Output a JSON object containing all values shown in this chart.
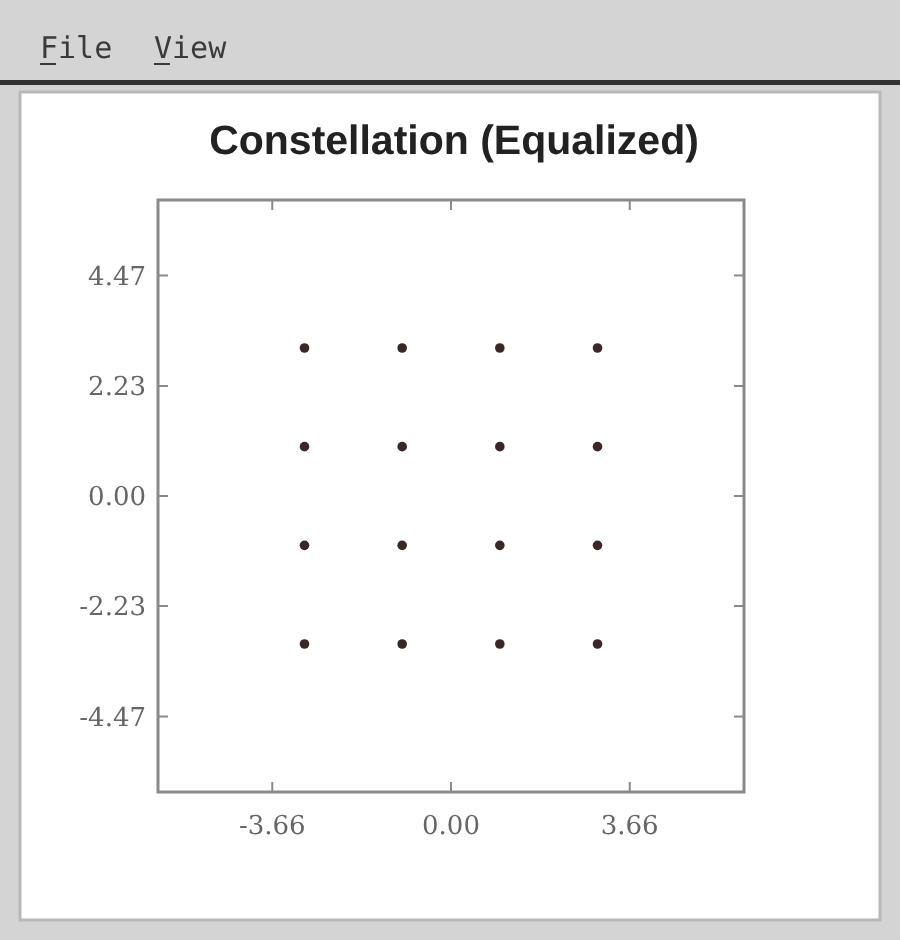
{
  "chart_data": {
    "type": "scatter",
    "title": "Constellation (Equalized)",
    "annotations": [
      "File",
      "View"
    ],
    "x": [
      -3,
      -1,
      1,
      3,
      -3,
      -1,
      1,
      3,
      -3,
      -1,
      1,
      3,
      -3,
      -1,
      1,
      3
    ],
    "values": [
      3,
      3,
      3,
      3,
      1,
      1,
      1,
      1,
      -1,
      -1,
      -1,
      -1,
      -3,
      -3,
      -3,
      -3
    ],
    "color": "#3a2828",
    "marker": "circle",
    "xlim": [
      -6,
      6
    ],
    "ylim": [
      -6,
      6
    ],
    "xticks": [
      -3.66,
      {
        "value": 0,
        "label": "0.00"
      },
      3.66
    ],
    "yticks": [
      -4.47,
      -2.23,
      {
        "value": 0,
        "label": "0.00"
      },
      2.23,
      4.47
    ]
  }
}
